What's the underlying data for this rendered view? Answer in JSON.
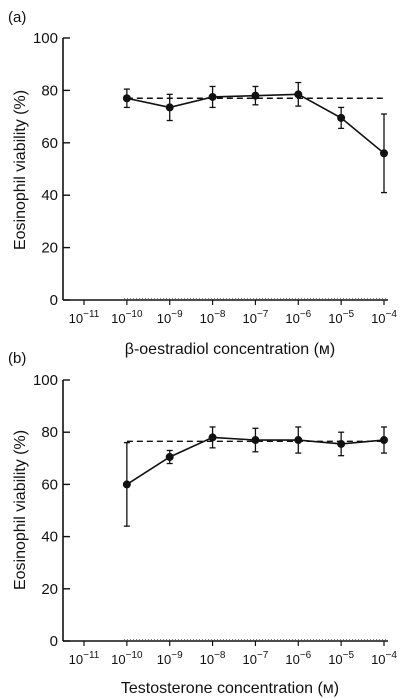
{
  "chart_data": [
    {
      "type": "line",
      "panel_label": "(a)",
      "xlabel": "β-oestradiol concentration (м)",
      "ylabel": "Eosinophil viability (%)",
      "x_scale": "log",
      "xlim": [
        1e-11,
        0.0001
      ],
      "x_ticks": [
        1e-11,
        1e-10,
        1e-09,
        1e-08,
        1e-07,
        1e-06,
        1e-05,
        0.0001
      ],
      "x_tick_labels": [
        {
          "base": "10",
          "exp": "−11"
        },
        {
          "base": "10",
          "exp": "−10"
        },
        {
          "base": "10",
          "exp": "−9"
        },
        {
          "base": "10",
          "exp": "−8"
        },
        {
          "base": "10",
          "exp": "−7"
        },
        {
          "base": "10",
          "exp": "−6"
        },
        {
          "base": "10",
          "exp": "−5"
        },
        {
          "base": "10",
          "exp": "−4"
        }
      ],
      "ylim": [
        0,
        100
      ],
      "y_ticks": [
        0,
        20,
        40,
        60,
        80,
        100
      ],
      "y_tick_labels": [
        "0",
        "20",
        "40",
        "60",
        "80",
        "100"
      ],
      "baseline_value": 77,
      "baseline_style": "dashed",
      "series": [
        {
          "x": [
            1e-10,
            1e-09,
            1e-08,
            1e-07,
            1e-06,
            1e-05,
            0.0001
          ],
          "y": [
            77,
            73.5,
            77.5,
            78,
            78.5,
            69.5,
            56
          ],
          "error": [
            3.5,
            5,
            4,
            3.5,
            4.5,
            4,
            15
          ]
        }
      ],
      "grid": false
    },
    {
      "type": "line",
      "panel_label": "(b)",
      "xlabel": "Testosterone concentration (м)",
      "ylabel": "Eosinophil viability (%)",
      "x_scale": "log",
      "xlim": [
        1e-11,
        0.0001
      ],
      "x_ticks": [
        1e-11,
        1e-10,
        1e-09,
        1e-08,
        1e-07,
        1e-06,
        1e-05,
        0.0001
      ],
      "x_tick_labels": [
        {
          "base": "10",
          "exp": "−11"
        },
        {
          "base": "10",
          "exp": "−10"
        },
        {
          "base": "10",
          "exp": "−9"
        },
        {
          "base": "10",
          "exp": "−8"
        },
        {
          "base": "10",
          "exp": "−7"
        },
        {
          "base": "10",
          "exp": "−6"
        },
        {
          "base": "10",
          "exp": "−5"
        },
        {
          "base": "10",
          "exp": "−4"
        }
      ],
      "ylim": [
        0,
        100
      ],
      "y_ticks": [
        0,
        20,
        40,
        60,
        80,
        100
      ],
      "y_tick_labels": [
        "0",
        "20",
        "40",
        "60",
        "80",
        "100"
      ],
      "baseline_value": 76.5,
      "baseline_style": "dashed",
      "series": [
        {
          "x": [
            1e-10,
            1e-09,
            1e-08,
            1e-07,
            1e-06,
            1e-05,
            0.0001
          ],
          "y": [
            60,
            70.5,
            78,
            77,
            77,
            75.5,
            77
          ],
          "error": [
            16,
            2.5,
            4,
            4.5,
            5,
            4.5,
            5
          ]
        }
      ],
      "grid": false
    }
  ]
}
